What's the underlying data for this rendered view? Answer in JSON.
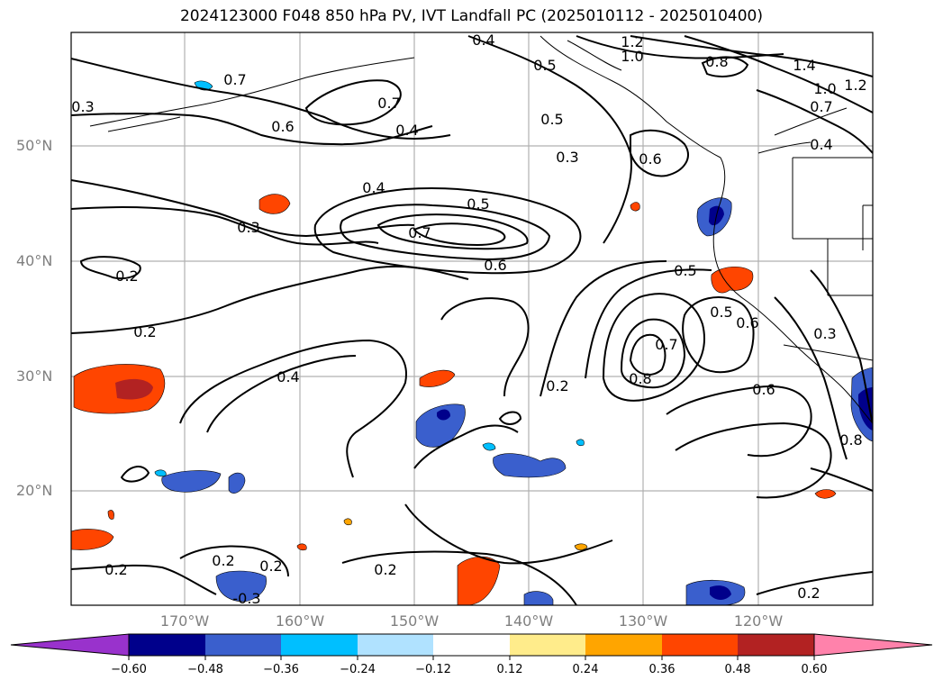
{
  "title": "2024123000 F048 850 hPa PV, IVT Landfall PC (2025010112 - 2025010400)",
  "map": {
    "lat_labels": [
      "50°N",
      "40°N",
      "30°N",
      "20°N"
    ],
    "lon_labels": [
      "170°W",
      "160°W",
      "150°W",
      "140°W",
      "130°W",
      "120°W"
    ],
    "contour_labels": [
      {
        "id": "c1",
        "text": "0.4"
      },
      {
        "id": "c2",
        "text": "1.2"
      },
      {
        "id": "c3",
        "text": "1.0"
      },
      {
        "id": "c4",
        "text": "0.8"
      },
      {
        "id": "c5",
        "text": "1.4"
      },
      {
        "id": "c6",
        "text": "1.0"
      },
      {
        "id": "c7",
        "text": "1.2"
      },
      {
        "id": "c8",
        "text": "0.5"
      },
      {
        "id": "c9",
        "text": "0.7"
      },
      {
        "id": "c10",
        "text": "0.3"
      },
      {
        "id": "c11",
        "text": "0.7"
      },
      {
        "id": "c12",
        "text": "0.6"
      },
      {
        "id": "c13",
        "text": "0.4"
      },
      {
        "id": "c14",
        "text": "0.5"
      },
      {
        "id": "c15",
        "text": "0.3"
      },
      {
        "id": "c16",
        "text": "0.6"
      },
      {
        "id": "c17",
        "text": "0.7"
      },
      {
        "id": "c18",
        "text": "0.4"
      },
      {
        "id": "c19",
        "text": "0.4"
      },
      {
        "id": "c20",
        "text": "0.5"
      },
      {
        "id": "c21",
        "text": "0.3"
      },
      {
        "id": "c22",
        "text": "0.7"
      },
      {
        "id": "c23",
        "text": "0.6"
      },
      {
        "id": "c24",
        "text": "0.2"
      },
      {
        "id": "c25",
        "text": "0.5"
      },
      {
        "id": "c26",
        "text": "0.2"
      },
      {
        "id": "c27",
        "text": "0.5"
      },
      {
        "id": "c28",
        "text": "0.6"
      },
      {
        "id": "c29",
        "text": "0.3"
      },
      {
        "id": "c30",
        "text": "0.7"
      },
      {
        "id": "c31",
        "text": "0.4"
      },
      {
        "id": "c32",
        "text": "0.8"
      },
      {
        "id": "c33",
        "text": "0.2"
      },
      {
        "id": "c34",
        "text": "0.6"
      },
      {
        "id": "c35",
        "text": "0.2"
      },
      {
        "id": "c36",
        "text": "0.2"
      },
      {
        "id": "c37",
        "text": "0.2"
      },
      {
        "id": "c38",
        "text": "0.2"
      },
      {
        "id": "c39",
        "text": "-0.3"
      },
      {
        "id": "c40",
        "text": "0.2"
      },
      {
        "id": "c41",
        "text": "0.8"
      }
    ]
  },
  "colorbar": {
    "colors": [
      "#9932cc",
      "#00008b",
      "#3a5fcd",
      "#00bfff",
      "#b0e2ff",
      "#ffffff",
      "#ffec8b",
      "#ffa500",
      "#ff4500",
      "#b22222",
      "#ff82ab"
    ],
    "tick_labels": [
      "−0.60",
      "−0.48",
      "−0.36",
      "−0.24",
      "−0.12",
      "0.12",
      "0.24",
      "0.36",
      "0.48",
      "0.60"
    ]
  },
  "chart_data": {
    "type": "map",
    "title": "2024123000 F048 850 hPa PV, IVT Landfall PC (2025010112 - 2025010400)",
    "extent_deg": {
      "lon": [
        -180,
        -110
      ],
      "lat": [
        10,
        60
      ]
    },
    "grid": true,
    "fill_levels": [
      -0.6,
      -0.48,
      -0.36,
      -0.24,
      -0.12,
      0.12,
      0.24,
      0.36,
      0.48,
      0.6
    ],
    "contour_levels": [
      -0.3,
      0.2,
      0.3,
      0.4,
      0.5,
      0.6,
      0.7,
      0.8,
      1.0,
      1.2,
      1.4
    ]
  }
}
